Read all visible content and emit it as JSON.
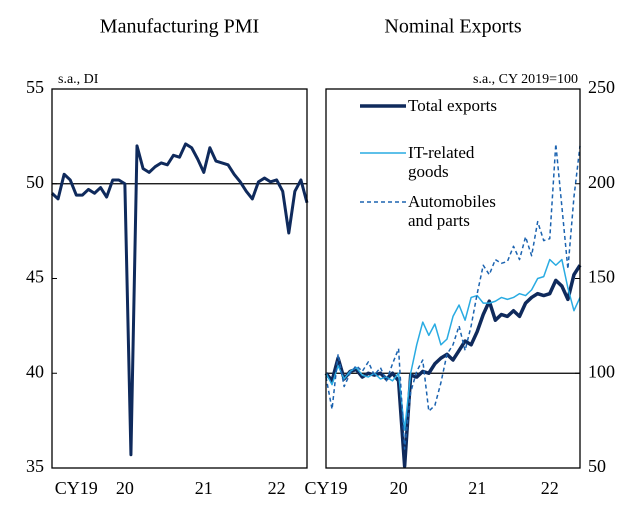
{
  "chart_data": [
    {
      "type": "line",
      "title": "Manufacturing PMI",
      "subtitle": "s.a., DI",
      "categories": [
        null,
        null,
        null,
        null,
        "CY19",
        null,
        null,
        null,
        null,
        null,
        null,
        null,
        "20",
        null,
        null,
        null,
        null,
        null,
        null,
        null,
        null,
        null,
        null,
        null,
        null,
        "21",
        null,
        null,
        null,
        null,
        null,
        null,
        null,
        null,
        null,
        null,
        null,
        "22",
        null,
        null,
        null,
        null,
        null
      ],
      "series": [
        {
          "color": "#0f2a5c",
          "values": [
            49.5,
            49.2,
            50.5,
            50.2,
            49.4,
            49.4,
            49.7,
            49.5,
            49.8,
            49.3,
            50.2,
            50.2,
            50.0,
            35.7,
            52.0,
            50.8,
            50.6,
            50.9,
            51.1,
            51.0,
            51.5,
            51.4,
            52.1,
            51.9,
            51.3,
            50.6,
            51.9,
            51.2,
            51.1,
            51.0,
            50.5,
            50.1,
            49.6,
            49.2,
            50.1,
            50.3,
            50.1,
            50.2,
            49.6,
            47.4,
            49.6,
            50.2,
            49.0
          ]
        }
      ],
      "ylim": [
        35,
        55
      ],
      "yticks": [
        35,
        40,
        45,
        50,
        55
      ],
      "y_axis_side": "left",
      "reference_line": 50
    },
    {
      "type": "line",
      "title": "Nominal Exports",
      "subtitle": "s.a., CY 2019=100",
      "categories": [
        "CY19",
        null,
        null,
        null,
        null,
        null,
        null,
        null,
        null,
        null,
        null,
        null,
        "20",
        null,
        null,
        null,
        null,
        null,
        null,
        null,
        null,
        null,
        null,
        null,
        null,
        "21",
        null,
        null,
        null,
        null,
        null,
        null,
        null,
        null,
        null,
        null,
        null,
        "22",
        null,
        null,
        null,
        null,
        null
      ],
      "series": [
        {
          "name": "Total exports",
          "color": "#0f2a5c",
          "dashed": false,
          "width": 3.5,
          "values": [
            100,
            96,
            108,
            97,
            101,
            102,
            98,
            100,
            99,
            100,
            97,
            100,
            96,
            51,
            99,
            98,
            101,
            100,
            105,
            108,
            110,
            107,
            112,
            117,
            115,
            122,
            131,
            138,
            128,
            131,
            130,
            133,
            130,
            137,
            140,
            142,
            141,
            142,
            149,
            146,
            139,
            152,
            157
          ]
        },
        {
          "name": "IT-related goods",
          "color": "#29abe2",
          "dashed": false,
          "width": 1.5,
          "values": [
            100,
            94,
            104,
            97,
            101,
            103,
            99,
            98,
            100,
            97,
            98,
            96,
            100,
            70,
            100,
            115,
            127,
            120,
            126,
            115,
            118,
            130,
            136,
            128,
            140,
            141,
            137,
            137,
            138,
            140,
            139,
            140,
            142,
            141,
            144,
            150,
            151,
            160,
            157,
            160,
            145,
            133,
            140
          ]
        },
        {
          "name": "Automobiles and parts",
          "color": "#1b63b0",
          "dashed": true,
          "width": 1.5,
          "values": [
            98,
            81,
            110,
            93,
            100,
            104,
            101,
            106,
            99,
            103,
            96,
            105,
            113,
            60,
            90,
            101,
            107,
            80,
            83,
            95,
            110,
            115,
            125,
            112,
            125,
            142,
            157,
            152,
            160,
            158,
            159,
            167,
            160,
            172,
            162,
            180,
            170,
            171,
            221,
            188,
            155,
            193,
            220
          ]
        }
      ],
      "ylim": [
        50,
        250
      ],
      "yticks": [
        50,
        100,
        150,
        200,
        250
      ],
      "y_axis_side": "right",
      "reference_line": 100
    }
  ]
}
